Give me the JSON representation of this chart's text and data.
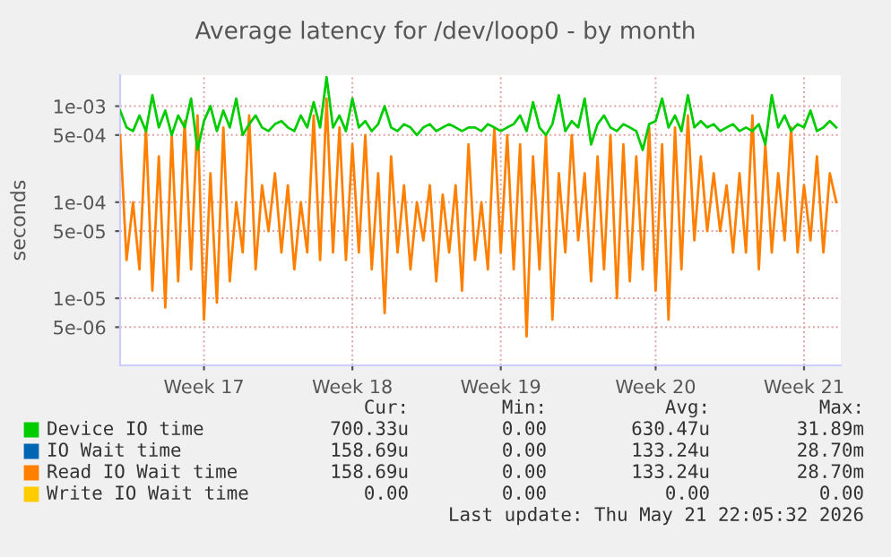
{
  "chart_data": {
    "type": "line",
    "title": "Average latency for /dev/loop0 - by month",
    "ylabel": "seconds",
    "log": "y",
    "grid": true,
    "legend": "bottom",
    "marker": "none",
    "line_style": "solid",
    "categories": [
      null,
      null,
      null,
      null,
      null,
      null,
      null,
      null,
      null,
      null,
      null,
      null,
      null,
      "Week 17",
      null,
      null,
      null,
      null,
      null,
      null,
      null,
      null,
      null,
      null,
      null,
      null,
      null,
      null,
      null,
      null,
      null,
      null,
      null,
      null,
      null,
      null,
      "Week 18",
      null,
      null,
      null,
      null,
      null,
      null,
      null,
      null,
      null,
      null,
      null,
      null,
      null,
      null,
      null,
      null,
      null,
      null,
      null,
      null,
      null,
      null,
      "Week 19",
      null,
      null,
      null,
      null,
      null,
      null,
      null,
      null,
      null,
      null,
      null,
      null,
      null,
      null,
      null,
      null,
      null,
      null,
      null,
      null,
      null,
      null,
      null,
      "Week 20",
      null,
      null,
      null,
      null,
      null,
      null,
      null,
      null,
      null,
      null,
      null,
      null,
      null,
      null,
      null,
      null,
      null,
      null,
      null,
      null,
      null,
      null,
      "Week 21",
      null,
      null,
      null,
      null,
      null
    ],
    "ylim": [
      2e-06,
      0.0021
    ],
    "yticks": [
      {
        "value": 5e-06,
        "label": "5e-06"
      },
      {
        "value": 1e-05,
        "label": "1e-05"
      },
      {
        "value": 5e-05,
        "label": "5e-05"
      },
      {
        "value": 0.0001,
        "label": "1e-04"
      },
      {
        "value": 0.0005,
        "label": "5e-04"
      },
      {
        "value": 0.001,
        "label": "1e-03"
      }
    ],
    "series": [
      {
        "name": "Device IO time",
        "color": "#00cc00",
        "values": [
          0.0009,
          0.0006,
          0.00055,
          0.0008,
          0.00055,
          0.0013,
          0.0006,
          0.0009,
          0.0005,
          0.0008,
          0.0006,
          0.0012,
          0.00035,
          0.0007,
          0.001,
          0.00055,
          0.0009,
          0.0006,
          0.0012,
          0.0005,
          0.00065,
          0.0008,
          0.0006,
          0.00055,
          0.00065,
          0.0007,
          0.0006,
          0.00055,
          0.0008,
          0.0006,
          0.0011,
          0.0006,
          0.002,
          0.0006,
          0.0008,
          0.00055,
          0.0012,
          0.0006,
          0.0007,
          0.00055,
          0.00065,
          0.001,
          0.0006,
          0.00055,
          0.00065,
          0.0006,
          0.0005,
          0.0006,
          0.00065,
          0.00055,
          0.0006,
          0.00065,
          0.0006,
          0.00055,
          0.0006,
          0.0006,
          0.00055,
          0.00065,
          0.0006,
          0.00055,
          0.0006,
          0.00065,
          0.0008,
          0.00055,
          0.0011,
          0.0006,
          0.0005,
          0.00065,
          0.0013,
          0.00055,
          0.0007,
          0.0006,
          0.0012,
          0.0004,
          0.00065,
          0.0008,
          0.0006,
          0.00055,
          0.00065,
          0.0006,
          0.00055,
          0.00035,
          0.00065,
          0.0007,
          0.0012,
          0.0006,
          0.0008,
          0.00055,
          0.0013,
          0.0006,
          0.0007,
          0.0006,
          0.00065,
          0.00055,
          0.0006,
          0.00065,
          0.00055,
          0.0006,
          0.00055,
          0.00065,
          0.0004,
          0.0013,
          0.0006,
          0.0008,
          0.00055,
          0.00065,
          0.0006,
          0.0009,
          0.00055,
          0.0006,
          0.0007,
          0.0006
        ]
      },
      {
        "name": "IO Wait time",
        "color": "#0066b3",
        "values": [
          null,
          null,
          null,
          null,
          null,
          null,
          null,
          null,
          null,
          null,
          null,
          null,
          null,
          null,
          null,
          null,
          null,
          null,
          null,
          null,
          null,
          null,
          null,
          null,
          null,
          null,
          null,
          null,
          null,
          null,
          null,
          null,
          null,
          null,
          null,
          null,
          null,
          null,
          null,
          null,
          null,
          null,
          null,
          null,
          null,
          null,
          null,
          null,
          null,
          null,
          null,
          null,
          null,
          null,
          null,
          null,
          null,
          null,
          null,
          null,
          null,
          null,
          null,
          null,
          null,
          null,
          null,
          null,
          null,
          null,
          null,
          null,
          null,
          null,
          null,
          null,
          null,
          null,
          null,
          null,
          null,
          null,
          null,
          null,
          null,
          null,
          null,
          null,
          null,
          null,
          null,
          null,
          null,
          null,
          null,
          null,
          null,
          null,
          null,
          null,
          null,
          null,
          null,
          null,
          null,
          null,
          null,
          null,
          null,
          null,
          null,
          null
        ]
      },
      {
        "name": "Read IO Wait time",
        "color": "#ff8000",
        "values": [
          0.0005,
          2.5e-05,
          0.0001,
          2e-05,
          0.0006,
          1.2e-05,
          0.0003,
          8e-06,
          0.0005,
          1.5e-05,
          0.0007,
          2e-05,
          0.0008,
          6e-06,
          0.0002,
          9e-06,
          0.0006,
          1.5e-05,
          0.0001,
          3e-05,
          0.0008,
          2e-05,
          0.00015,
          5e-05,
          0.0002,
          3e-05,
          0.00015,
          2e-05,
          0.0001,
          3e-05,
          0.0008,
          2.5e-05,
          0.0012,
          3e-05,
          0.0006,
          2.5e-05,
          0.0004,
          3e-05,
          0.0005,
          2e-05,
          0.0002,
          7e-06,
          0.0003,
          3e-05,
          0.00015,
          2e-05,
          0.0001,
          4e-05,
          0.00015,
          1.5e-05,
          0.00012,
          3e-05,
          0.00015,
          1.2e-05,
          0.0004,
          2.5e-05,
          0.0001,
          2e-05,
          0.0006,
          3e-05,
          0.0005,
          2e-05,
          0.0004,
          4e-06,
          0.0003,
          2e-05,
          0.0005,
          6e-06,
          0.0002,
          3e-05,
          0.0005,
          4e-05,
          0.0002,
          1.5e-05,
          0.0003,
          2e-05,
          0.0005,
          1e-05,
          0.0004,
          1.5e-05,
          0.0003,
          2e-05,
          0.0006,
          1.2e-05,
          0.0004,
          6e-06,
          0.0006,
          2e-05,
          0.0008,
          4e-05,
          0.0003,
          5e-05,
          0.0002,
          5e-05,
          0.00015,
          3e-05,
          0.0002,
          3e-05,
          0.0008,
          2e-05,
          0.0004,
          3e-05,
          0.0002,
          4e-05,
          0.0006,
          3e-05,
          0.00015,
          4e-05,
          0.0003,
          3e-05,
          0.0002,
          0.0001
        ]
      },
      {
        "name": "Write IO Wait time",
        "color": "#ffcc00",
        "values": [
          null,
          null,
          null,
          null,
          null,
          null,
          null,
          null,
          null,
          null,
          null,
          null,
          null,
          null,
          null,
          null,
          null,
          null,
          null,
          null,
          null,
          null,
          null,
          null,
          null,
          null,
          null,
          null,
          null,
          null,
          null,
          null,
          null,
          null,
          null,
          null,
          null,
          null,
          null,
          null,
          null,
          null,
          null,
          null,
          null,
          null,
          null,
          null,
          null,
          null,
          null,
          null,
          null,
          null,
          null,
          null,
          null,
          null,
          null,
          null,
          null,
          null,
          null,
          null,
          null,
          null,
          null,
          null,
          null,
          null,
          null,
          null,
          null,
          null,
          null,
          null,
          null,
          null,
          null,
          null,
          null,
          null,
          null,
          null,
          null,
          null,
          null,
          null,
          null,
          null,
          null,
          null,
          null,
          null,
          null,
          null,
          null,
          null,
          null,
          null,
          null,
          null,
          null,
          null,
          null,
          null,
          null,
          null,
          null,
          null,
          null,
          null
        ]
      }
    ],
    "annotations": [
      "Cur:",
      "Min:",
      "Avg:",
      "Max:",
      "700.33u",
      "0.00",
      "630.47u",
      "31.89m",
      "158.69u",
      "0.00",
      "133.24u",
      "28.70m",
      "158.69u",
      "0.00",
      "133.24u",
      "28.70m",
      "0.00",
      "0.00",
      "0.00",
      "0.00",
      "Last update: Thu May 21 22:05:32 2026"
    ]
  }
}
